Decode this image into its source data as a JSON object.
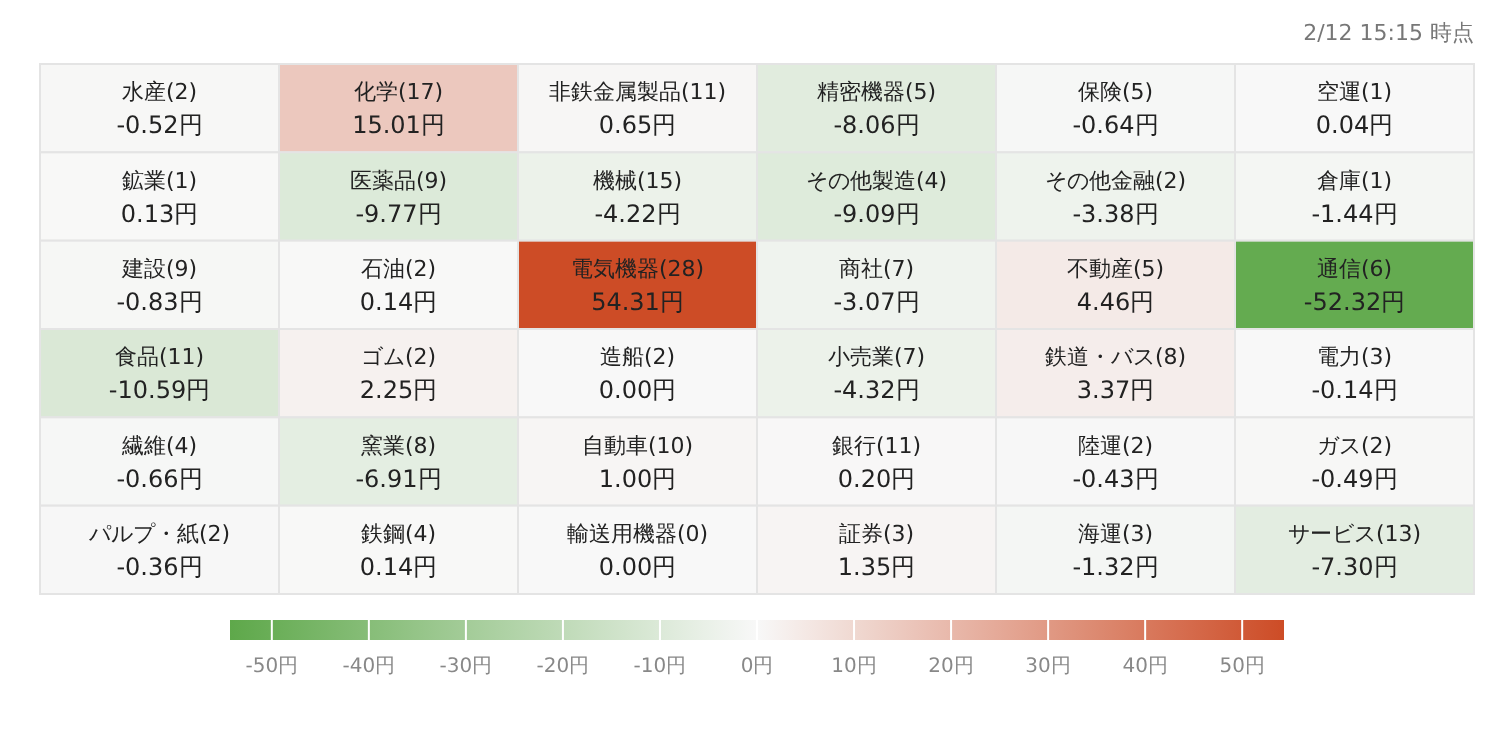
{
  "chart_data": {
    "type": "heatmap",
    "categories": [
      null,
      null,
      null,
      null,
      null,
      null
    ],
    "y_categories": [
      null,
      null,
      null,
      null,
      null,
      null
    ],
    "cells": [
      [
        -0.52,
        15.01,
        0.65,
        -8.06,
        -0.64,
        0.04
      ],
      [
        0.13,
        -9.77,
        -4.22,
        -9.09,
        -3.38,
        -1.44
      ],
      [
        -0.83,
        0.14,
        54.31,
        -3.07,
        4.46,
        -52.32
      ],
      [
        -10.59,
        2.25,
        0.0,
        -4.32,
        3.37,
        -0.14
      ],
      [
        -0.66,
        -6.91,
        1.0,
        0.2,
        -0.43,
        -0.49
      ],
      [
        -0.36,
        0.14,
        0.0,
        1.35,
        -1.32,
        -7.3
      ]
    ],
    "cell_labels": [
      [
        "水産(2)\n-0.52円",
        "化学(17)\n15.01円",
        "非鉄金属製品(11)\n0.65円",
        "精密機器(5)\n-8.06円",
        "保険(5)\n-0.64円",
        "空運(1)\n0.04円"
      ],
      [
        "鉱業(1)\n0.13円",
        "医薬品(9)\n-9.77円",
        "機械(15)\n-4.22円",
        "その他製造(4)\n-9.09円",
        "その他金融(2)\n-3.38円",
        "倉庫(1)\n-1.44円"
      ],
      [
        "建設(9)\n-0.83円",
        "石油(2)\n0.14円",
        "電気機器(28)\n54.31円",
        "商社(7)\n-3.07円",
        "不動産(5)\n4.46円",
        "通信(6)\n-52.32円"
      ],
      [
        "食品(11)\n-10.59円",
        "ゴム(2)\n2.25円",
        "造船(2)\n0.00円",
        "小売業(7)\n-4.32円",
        "鉄道・バス(8)\n3.37円",
        "電力(3)\n-0.14円"
      ],
      [
        "繊維(4)\n-0.66円",
        "窯業(8)\n-6.91円",
        "自動車(10)\n1.00円",
        "銀行(11)\n0.20円",
        "陸運(2)\n-0.43円",
        "ガス(2)\n-0.49円"
      ],
      [
        "パルプ・紙(2)\n-0.36円",
        "鉄鋼(4)\n0.14円",
        "輸送用機器(0)\n0.00円",
        "証券(3)\n1.35円",
        "海運(3)\n-1.32円",
        "サービス(13)\n-7.30円"
      ]
    ],
    "clim": [
      -54.31,
      54.31
    ],
    "cticks": [
      {
        "value": -50,
        "label": "-50円"
      },
      {
        "value": -40,
        "label": "-40円"
      },
      {
        "value": -30,
        "label": "-30円"
      },
      {
        "value": -20,
        "label": "-20円"
      },
      {
        "value": -10,
        "label": "-10円"
      },
      {
        "value": 0,
        "label": "0円"
      },
      {
        "value": 10,
        "label": "10円"
      },
      {
        "value": 20,
        "label": "20円"
      },
      {
        "value": 30,
        "label": "30円"
      },
      {
        "value": 40,
        "label": "40円"
      },
      {
        "value": 50,
        "label": "50円"
      }
    ],
    "annotations": [
      "2/12 15:15 時点"
    ]
  }
}
